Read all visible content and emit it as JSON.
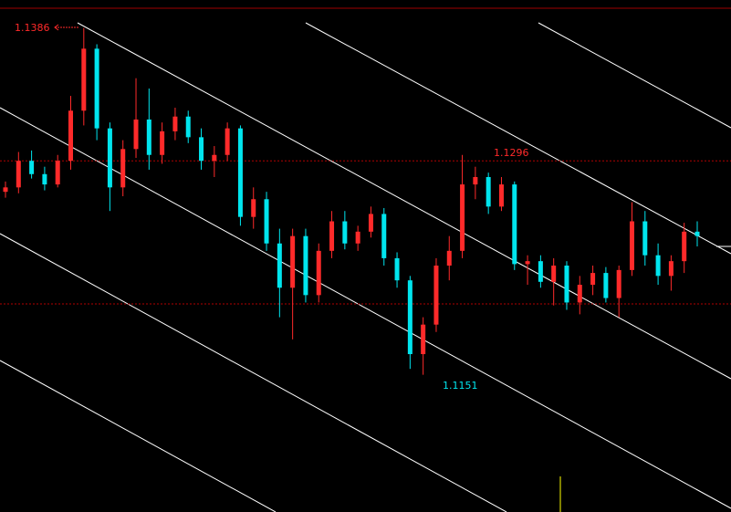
{
  "chart_data": {
    "type": "candlestick",
    "up_color": "#ff2a2a",
    "down_color": "#00e5ee",
    "ylim": [
      1.1058,
      1.1405
    ],
    "open": [
      1.1275,
      1.1278,
      1.1296,
      1.1287,
      1.128,
      1.1296,
      1.133,
      1.1372,
      1.1318,
      1.1278,
      1.1304,
      1.1324,
      1.13,
      1.1316,
      1.1326,
      1.1312,
      1.1296,
      1.13,
      1.1318,
      1.1258,
      1.127,
      1.124,
      1.121,
      1.1245,
      1.1205,
      1.1235,
      1.1255,
      1.124,
      1.1248,
      1.126,
      1.123,
      1.1215,
      1.1165,
      1.1185,
      1.1225,
      1.1235,
      1.128,
      1.1285,
      1.1265,
      1.128,
      1.1226,
      1.1228,
      1.1214,
      1.1225,
      1.12,
      1.1212,
      1.122,
      1.1203,
      1.1222,
      1.1255,
      1.1232,
      1.1218,
      1.1228,
      1.1248
    ],
    "high": [
      1.1282,
      1.1302,
      1.1303,
      1.1292,
      1.13,
      1.134,
      1.1386,
      1.1375,
      1.1322,
      1.131,
      1.1352,
      1.1345,
      1.1322,
      1.1332,
      1.133,
      1.1318,
      1.1306,
      1.1322,
      1.132,
      1.1278,
      1.1275,
      1.125,
      1.125,
      1.125,
      1.124,
      1.1262,
      1.1262,
      1.1252,
      1.1265,
      1.1264,
      1.1234,
      1.1218,
      1.119,
      1.123,
      1.1245,
      1.13,
      1.1292,
      1.1288,
      1.1285,
      1.1282,
      1.1232,
      1.1232,
      1.123,
      1.1228,
      1.1218,
      1.1225,
      1.1224,
      1.1225,
      1.1268,
      1.1262,
      1.124,
      1.1232,
      1.1254,
      1.1255
    ],
    "low": [
      1.1271,
      1.1274,
      1.1284,
      1.1276,
      1.1278,
      1.129,
      1.132,
      1.131,
      1.1262,
      1.1272,
      1.1298,
      1.129,
      1.1294,
      1.131,
      1.1308,
      1.129,
      1.1285,
      1.1296,
      1.1252,
      1.125,
      1.1235,
      1.119,
      1.1175,
      1.12,
      1.12,
      1.123,
      1.1236,
      1.1235,
      1.1244,
      1.1225,
      1.121,
      1.1155,
      1.1151,
      1.118,
      1.1215,
      1.123,
      1.127,
      1.126,
      1.1262,
      1.1222,
      1.1212,
      1.121,
      1.1198,
      1.1195,
      1.1192,
      1.1205,
      1.12,
      1.119,
      1.1218,
      1.1225,
      1.1212,
      1.1208,
      1.122,
      1.1238
    ],
    "close": [
      1.1278,
      1.1296,
      1.1287,
      1.128,
      1.1296,
      1.133,
      1.1372,
      1.1318,
      1.1278,
      1.1304,
      1.1324,
      1.13,
      1.1316,
      1.1326,
      1.1312,
      1.1296,
      1.13,
      1.1318,
      1.1258,
      1.127,
      1.124,
      1.121,
      1.1245,
      1.1205,
      1.1235,
      1.1255,
      1.124,
      1.1248,
      1.126,
      1.123,
      1.1215,
      1.1165,
      1.1185,
      1.1225,
      1.1235,
      1.128,
      1.1285,
      1.1265,
      1.128,
      1.1226,
      1.1228,
      1.1214,
      1.1225,
      1.12,
      1.1212,
      1.122,
      1.1203,
      1.1222,
      1.1255,
      1.1232,
      1.1218,
      1.1228,
      1.1248,
      1.1245
    ],
    "levels": [
      1.1296,
      1.1199
    ],
    "annotations": [
      {
        "value": 1.1386,
        "label": "1.1386",
        "color": "#ff2a2a"
      },
      {
        "value": 1.1296,
        "label": "1.1296",
        "color": "#ff2a2a"
      },
      {
        "value": 1.1151,
        "label": "1.1151",
        "color": "#00e5ee"
      }
    ]
  }
}
